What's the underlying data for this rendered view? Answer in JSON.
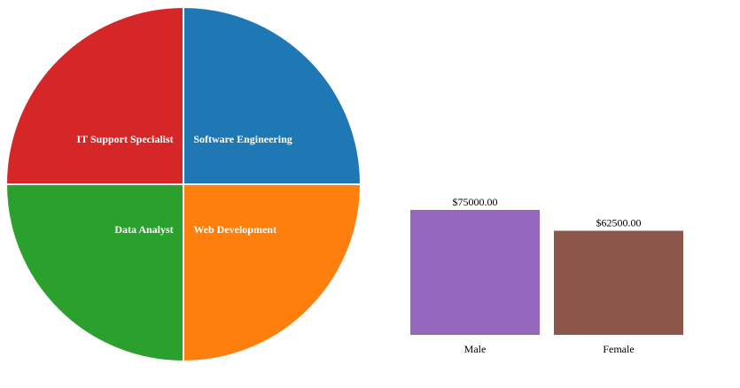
{
  "chart_data": [
    {
      "type": "pie",
      "categories": [
        "Software Engineering",
        "Web Development",
        "Data Analyst",
        "IT Support Specialist"
      ],
      "values": [
        25,
        25,
        25,
        25
      ],
      "colors": [
        "#1f77b4",
        "#ff7f0e",
        "#2ca02c",
        "#d62728"
      ],
      "title": "",
      "legend": "none"
    },
    {
      "type": "bar",
      "categories": [
        "Male",
        "Female"
      ],
      "values": [
        75000,
        62500
      ],
      "value_labels": [
        "$75000.00",
        "$62500.00"
      ],
      "colors": [
        "#9467bd",
        "#8c564b"
      ],
      "title": "",
      "xlabel": "",
      "ylabel": "",
      "ylim": [
        0,
        75000
      ],
      "grid": false,
      "axes_visible": false
    }
  ]
}
